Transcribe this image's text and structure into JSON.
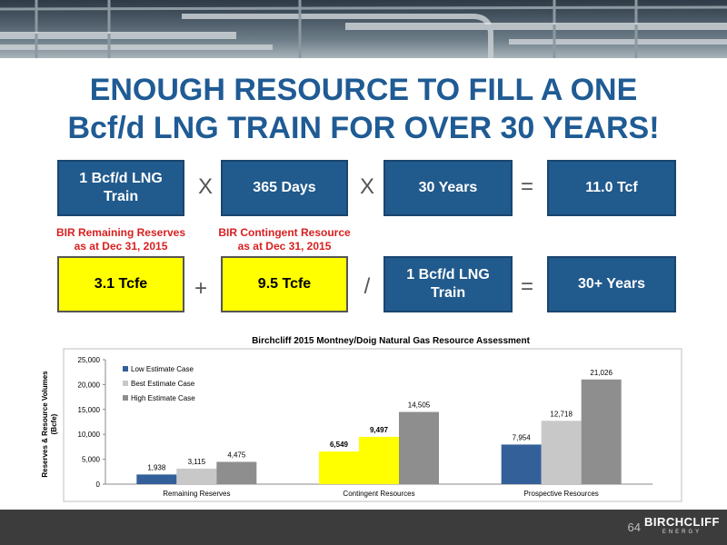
{
  "slide": {
    "title_line1": "ENOUGH RESOURCE TO FILL A ONE",
    "title_line2": "Bcf/d LNG TRAIN FOR OVER 30 YEARS!",
    "row1": {
      "box1_line1": "1 Bcf/d LNG",
      "box1_line2": "Train",
      "op1": "X",
      "box2": "365 Days",
      "op2": "X",
      "box3": "30 Years",
      "eq": "=",
      "result": "11.0 Tcf"
    },
    "labels": {
      "reserves_line1": "BIR Remaining Reserves",
      "reserves_line2": "as at Dec 31, 2015",
      "contingent_line1": "BIR Contingent Resource",
      "contingent_line2": "as at Dec 31, 2015"
    },
    "row2": {
      "box1": "3.1 Tcfe",
      "op1": "+",
      "box2": "9.5 Tcfe",
      "op2": "/",
      "box3_line1": "1 Bcf/d LNG",
      "box3_line2": "Train",
      "eq": "=",
      "result": "30+ Years"
    },
    "page_number": "64",
    "logo_name": "BIRCHCLIFF",
    "logo_sub": "ENERGY"
  },
  "chart_data": {
    "type": "bar",
    "title": "Birchcliff 2015 Montney/Doig Natural Gas Resource Assessment",
    "ylabel_line1": "Reserves & Resource Volumes",
    "ylabel_line2": "(Bcfe)",
    "xlabel": "",
    "ylim": [
      0,
      25000
    ],
    "yticks": [
      "0",
      "5,000",
      "10,000",
      "15,000",
      "20,000",
      "25,000"
    ],
    "categories": [
      "Remaining Reserves",
      "Contingent Resources",
      "Prospective Resources"
    ],
    "series": [
      {
        "name": "Low Estimate Case",
        "values": [
          1938,
          6549,
          7954
        ],
        "labels": [
          "1,938",
          "6,549",
          "7,954"
        ],
        "color": "#34609a"
      },
      {
        "name": "Best Estimate Case",
        "values": [
          3115,
          9497,
          12718
        ],
        "labels": [
          "3,115",
          "9,497",
          "12,718"
        ],
        "color": "#c8c8c8"
      },
      {
        "name": "High Estimate Case",
        "values": [
          4475,
          14505,
          21026
        ],
        "labels": [
          "4,475",
          "14,505",
          "21,026"
        ],
        "color": "#8e8e8e"
      }
    ],
    "highlight_color": "#ffff00",
    "highlight_points": [
      [
        1,
        0
      ],
      [
        1,
        1
      ]
    ],
    "grid": false,
    "legend_position": "top-left"
  }
}
